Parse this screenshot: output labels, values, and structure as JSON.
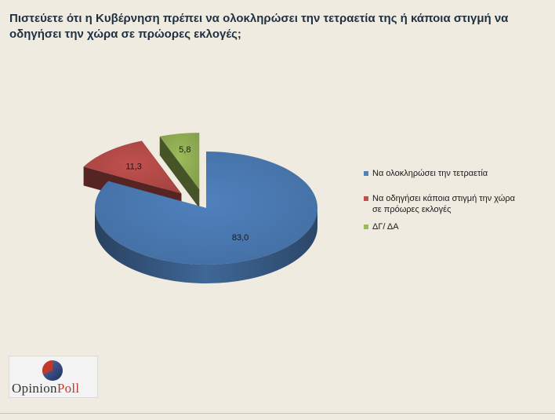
{
  "title": "Πιστεύετε ότι η Κυβέρνηση πρέπει να ολοκληρώσει την τετραετία της ή κάποια στιγμή να οδηγήσει την χώρα σε πρώορες εκλογές;",
  "chart_data": {
    "type": "pie",
    "style": "3d-exploded",
    "title": "Πιστεύετε ότι η Κυβέρνηση πρέπει να ολοκληρώσει την τετραετία της ή κάποια στιγμή να οδηγήσει την χώρα σε πρώορες εκλογές;",
    "categories": [
      "Να ολοκληρώσει την τετραετία",
      "Να οδηγήσει κάποια στιγμή την χώρα σε πρόωρες εκλογές",
      "ΔΓ/ ΔΑ"
    ],
    "values": [
      83.0,
      11.3,
      5.8
    ],
    "data_labels": [
      "83,0",
      "11,3",
      "5,8"
    ],
    "colors": [
      "#4f81bd",
      "#c0504d",
      "#9bbb59"
    ],
    "legend_placement": "right"
  },
  "legend": [
    {
      "lines": [
        "Να ολοκληρώσει την τετραετία"
      ],
      "color": "#4f81bd"
    },
    {
      "lines": [
        "Να οδηγήσει κάποια στιγμή την χώρα",
        "σε πρόωρες εκλογές"
      ],
      "color": "#c0504d"
    },
    {
      "lines": [
        "ΔΓ/ ΔΑ"
      ],
      "color": "#9bbb59"
    }
  ],
  "logo": {
    "text_part1": "Opinion",
    "text_part2": "Poll"
  }
}
